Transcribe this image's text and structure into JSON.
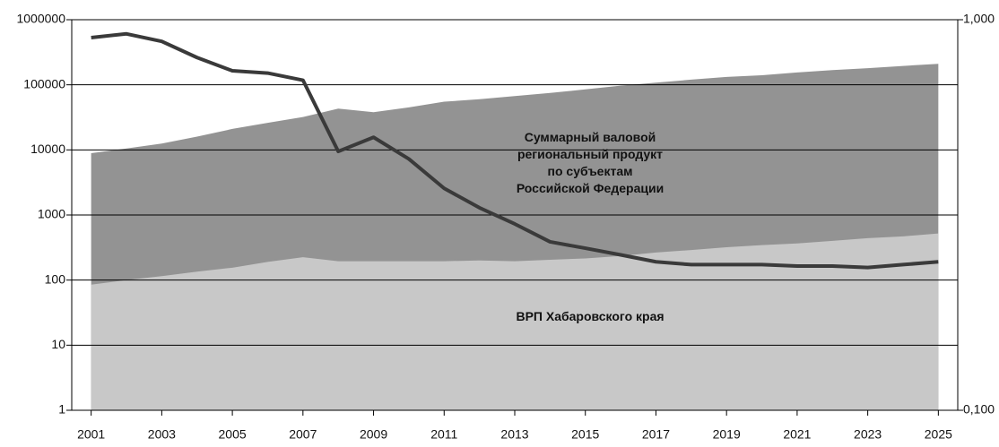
{
  "chart_data": {
    "type": "area",
    "x": [
      2001,
      2002,
      2003,
      2004,
      2005,
      2006,
      2007,
      2008,
      2009,
      2010,
      2011,
      2012,
      2013,
      2014,
      2015,
      2016,
      2017,
      2018,
      2019,
      2020,
      2021,
      2022,
      2023,
      2024,
      2025
    ],
    "xlim": [
      2000.45,
      2025.55
    ],
    "xticks": [
      2001,
      2003,
      2005,
      2007,
      2009,
      2011,
      2013,
      2015,
      2017,
      2019,
      2021,
      2023,
      2025
    ],
    "ylim": [
      1,
      1000000
    ],
    "yscale": "log",
    "yticks": [
      1,
      10,
      100,
      1000,
      10000,
      100000,
      1000000
    ],
    "y2lim": [
      0.1,
      1
    ],
    "y2scale": "log",
    "y2ticks": [
      {
        "value": 0.1,
        "label": "0,100"
      },
      {
        "value": 1,
        "label": "1,000"
      }
    ],
    "grid": true,
    "series": [
      {
        "name": "Суммарный валовой\nрегиональный продукт\nпо субъектам\nРоссийской Федерации",
        "type": "area",
        "color": "#939393",
        "values": [
          8900,
          10500,
          12500,
          16000,
          21000,
          26000,
          32000,
          43000,
          38000,
          45000,
          55000,
          60000,
          67000,
          75000,
          85000,
          97000,
          108000,
          120000,
          132000,
          140000,
          155000,
          168000,
          180000,
          195000,
          210000
        ]
      },
      {
        "name": "ВРП Хабаровского края",
        "type": "area",
        "color": "#c8c8c8",
        "values": [
          85,
          100,
          115,
          135,
          155,
          190,
          225,
          195,
          195,
          195,
          195,
          200,
          195,
          205,
          215,
          235,
          265,
          290,
          320,
          345,
          365,
          400,
          440,
          470,
          520
        ]
      },
      {
        "type": "line",
        "axis": "y2",
        "color": "#3a3a3a",
        "values": [
          0.9,
          0.92,
          0.88,
          0.8,
          0.74,
          0.73,
          0.7,
          0.46,
          0.5,
          0.44,
          0.37,
          0.33,
          0.3,
          0.27,
          0.26,
          0.25,
          0.24,
          0.236,
          0.236,
          0.236,
          0.234,
          0.234,
          0.232,
          0.236,
          0.24
        ]
      }
    ]
  }
}
